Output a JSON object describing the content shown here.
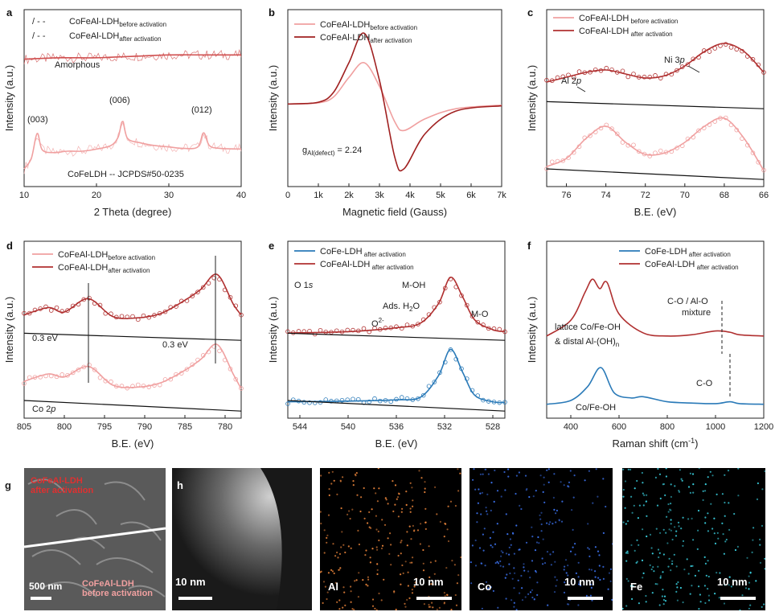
{
  "panels": {
    "a": {
      "letter": "a",
      "legend": [
        "/ - -",
        "CoFeAl-LDH",
        "before activation",
        "/ - -",
        "CoFeAl-LDH",
        "after activation"
      ],
      "annotations": {
        "amorphous": "Amorphous",
        "p003": "(003)",
        "p006": "(006)",
        "p012": "(012)",
        "ref": "CoFeLDH -- JCPDS#50-0235"
      }
    },
    "b": {
      "letter": "b",
      "g_label": "g",
      "g_sub": "Al(defect)",
      "g_value": " = 2.24",
      "legend": [
        "CoFeAl-LDH",
        "before activation",
        "CoFeAl-LDH",
        "after activation"
      ]
    },
    "c": {
      "letter": "c",
      "al": "Al 2",
      "al_it": "p",
      "ni": "Ni 3",
      "ni_it": "p",
      "legend": [
        "CoFeAl-LDH",
        " before activation",
        "CoFeAl-LDH",
        " after activation"
      ]
    },
    "d": {
      "letter": "d",
      "shift1": "0.3 eV",
      "shift2": "0.3 eV",
      "co": "Co 2",
      "co_it": "p",
      "legend": [
        "CoFeAl-LDH",
        "before activation",
        "CoFeAl-LDH",
        "after activation"
      ]
    },
    "e": {
      "letter": "e",
      "o1s": "O 1",
      "o1s_it": "s",
      "moh": "M-OH",
      "ads": "Ads. H",
      "ads_sub": "2",
      "ads_end": "O",
      "o2": "O",
      "o2_sup": "2-",
      "mo": "M-O",
      "legend": [
        "CoFe-LDH",
        " after activation",
        "CoFeAl-LDH",
        " after activation"
      ]
    },
    "f": {
      "letter": "f",
      "coalo": "C-O / Al-O",
      "mixture": "mixture",
      "lattice": "lattice Co/Fe-OH",
      "distal": "& distal Al-(OH)",
      "distal_sub": "n",
      "co": "C-O",
      "cofeoh": "Co/Fe-OH",
      "legend": [
        "CoFe-LDH",
        " after activation",
        "CoFeAl-LDH",
        " after activation"
      ]
    },
    "g": {
      "letter": "g",
      "after1": "CoFeAl-LDH",
      "after2": "after activation",
      "before1": "CoFeAl-LDH",
      "before2": "before activation",
      "scale": "500 nm"
    },
    "h": {
      "letter": "h",
      "scale": "10 nm"
    },
    "maps": [
      {
        "element": "Al",
        "scale": "10 nm",
        "color": "#e8833a"
      },
      {
        "element": "Co",
        "scale": "10 nm",
        "color": "#3a6fe8"
      },
      {
        "element": "Fe",
        "scale": "10 nm",
        "color": "#3ad0e0"
      }
    ]
  },
  "chart_data": [
    {
      "id": "a",
      "type": "line",
      "xlabel": "2 Theta (degree)",
      "ylabel": "Intensity (a.u.)",
      "xlim": [
        10,
        40
      ],
      "xticks": [
        10,
        20,
        30,
        40
      ],
      "series": [
        {
          "name": "CoFeAl-LDH before activation",
          "color": "#f0a0a0",
          "x": [
            10,
            11,
            11.8,
            12.5,
            14,
            16,
            18,
            20,
            22,
            23,
            23.6,
            24.3,
            26,
            28,
            30,
            32,
            34,
            34.8,
            35.6,
            37,
            40
          ],
          "y": [
            0.05,
            0.2,
            0.55,
            0.32,
            0.28,
            0.3,
            0.3,
            0.33,
            0.38,
            0.5,
            0.72,
            0.48,
            0.42,
            0.38,
            0.36,
            0.34,
            0.36,
            0.56,
            0.38,
            0.34,
            0.33
          ]
        },
        {
          "name": "CoFeAl-LDH after activation",
          "color": "#d05050",
          "x": [
            10,
            15,
            20,
            25,
            30,
            35,
            40
          ],
          "y": [
            1.6,
            1.62,
            1.62,
            1.64,
            1.66,
            1.66,
            1.66
          ]
        }
      ]
    },
    {
      "id": "b",
      "type": "line",
      "xlabel": "Magnetic field (Gauss)",
      "ylabel": "Intensity (a.u.)",
      "xlim": [
        0,
        7000
      ],
      "xticks": [
        "0",
        "1k",
        "2k",
        "3k",
        "4k",
        "5k",
        "6k",
        "7k"
      ],
      "series": [
        {
          "name": "CoFeAl-LDH before activation",
          "color": "#f0a0a0",
          "x": [
            0,
            1000,
            1500,
            2000,
            2500,
            3000,
            3500,
            3800,
            4500,
            5500,
            7000
          ],
          "y": [
            0,
            0.02,
            0.12,
            0.45,
            0.7,
            0.3,
            -0.3,
            -0.45,
            -0.25,
            -0.08,
            -0.02
          ]
        },
        {
          "name": "CoFeAl-LDH after activation",
          "color": "#a02020",
          "x": [
            0,
            1000,
            1500,
            2000,
            2500,
            3000,
            3500,
            3800,
            4500,
            5500,
            7000
          ],
          "y": [
            0,
            0.03,
            0.2,
            0.7,
            1.2,
            0.4,
            -0.9,
            -1.1,
            -0.5,
            -0.12,
            -0.03
          ]
        }
      ]
    },
    {
      "id": "c",
      "type": "line",
      "xlabel": "B.E. (eV)",
      "ylabel": "Intensity (a.u.)",
      "xlim": [
        77,
        66
      ],
      "xticks": [
        76,
        74,
        72,
        70,
        68,
        66
      ],
      "series": [
        {
          "name": "CoFeAl-LDH before activation",
          "color": "#f0a0a0",
          "x": [
            77,
            76,
            75,
            74,
            73,
            72,
            71,
            70,
            69,
            68,
            67,
            66
          ],
          "y": [
            0.25,
            0.35,
            0.6,
            0.75,
            0.55,
            0.4,
            0.42,
            0.55,
            0.75,
            0.85,
            0.6,
            0.2
          ]
        },
        {
          "name": "CoFeAl-LDH after activation",
          "color": "#b03030",
          "x": [
            77,
            76,
            75,
            74,
            73,
            72,
            71,
            70,
            69,
            68,
            67,
            66
          ],
          "y": [
            1.3,
            1.36,
            1.42,
            1.45,
            1.4,
            1.35,
            1.38,
            1.5,
            1.68,
            1.78,
            1.68,
            1.42
          ]
        }
      ]
    },
    {
      "id": "d",
      "type": "line",
      "xlabel": "B.E. (eV)",
      "ylabel": "Intensity (a.u.)",
      "xlim": [
        805,
        778
      ],
      "xticks": [
        805,
        800,
        795,
        790,
        785,
        780
      ],
      "series": [
        {
          "name": "CoFeAl-LDH before activation",
          "color": "#f0a0a0",
          "x": [
            805,
            802,
            800,
            797,
            794,
            791,
            788,
            785,
            783,
            781,
            779,
            778
          ],
          "y": [
            0.2,
            0.3,
            0.26,
            0.4,
            0.15,
            0.12,
            0.18,
            0.35,
            0.5,
            0.7,
            0.3,
            0.1
          ]
        },
        {
          "name": "CoFeAl-LDH after activation",
          "color": "#b03030",
          "x": [
            805,
            802,
            800,
            797,
            794,
            791,
            788,
            785,
            783,
            781,
            779,
            778
          ],
          "y": [
            1.1,
            1.2,
            1.14,
            1.32,
            1.08,
            1.06,
            1.12,
            1.3,
            1.45,
            1.65,
            1.25,
            1.1
          ]
        }
      ]
    },
    {
      "id": "e",
      "type": "line",
      "xlabel": "B.E. (eV)",
      "ylabel": "Intensity (a.u.)",
      "xlim": [
        545,
        527
      ],
      "xticks": [
        544,
        540,
        536,
        532,
        528
      ],
      "series": [
        {
          "name": "CoFe-LDH after activation",
          "color": "#2a7ab8",
          "x": [
            545,
            540,
            536,
            534,
            532.5,
            531.5,
            530.5,
            529.5,
            528,
            527
          ],
          "y": [
            0.05,
            0.06,
            0.08,
            0.12,
            0.45,
            0.85,
            0.5,
            0.15,
            0.05,
            0.04
          ]
        },
        {
          "name": "CoFeAl-LDH after activation",
          "color": "#b03030",
          "x": [
            545,
            540,
            536,
            534,
            532.5,
            531.5,
            530.5,
            529.5,
            528,
            527
          ],
          "y": [
            1.1,
            1.12,
            1.18,
            1.25,
            1.55,
            1.95,
            1.65,
            1.3,
            1.15,
            1.12
          ]
        }
      ]
    },
    {
      "id": "f",
      "type": "line",
      "xlabel": "Raman shift (cm",
      "xlabel_sup": "-1",
      "xlabel_end": ")",
      "ylabel": "Intensity (a.u.)",
      "xlim": [
        300,
        1200
      ],
      "xticks": [
        400,
        600,
        800,
        1000,
        1200
      ],
      "series": [
        {
          "name": "CoFe-LDH after activation",
          "color": "#2a7ab8",
          "x": [
            300,
            400,
            470,
            525,
            580,
            650,
            700,
            800,
            900,
            1000,
            1060,
            1100,
            1200
          ],
          "y": [
            0.02,
            0.08,
            0.3,
            0.6,
            0.2,
            0.12,
            0.14,
            0.06,
            0.04,
            0.03,
            0.06,
            0.03,
            0.02
          ]
        },
        {
          "name": "CoFeAl-LDH after activation",
          "color": "#b03030",
          "x": [
            300,
            400,
            460,
            490,
            520,
            550,
            600,
            700,
            800,
            900,
            1000,
            1060,
            1100,
            1200
          ],
          "y": [
            1.1,
            1.35,
            1.8,
            2.0,
            1.85,
            1.95,
            1.45,
            1.15,
            1.1,
            1.12,
            1.18,
            1.16,
            1.12,
            1.1
          ]
        }
      ]
    }
  ]
}
